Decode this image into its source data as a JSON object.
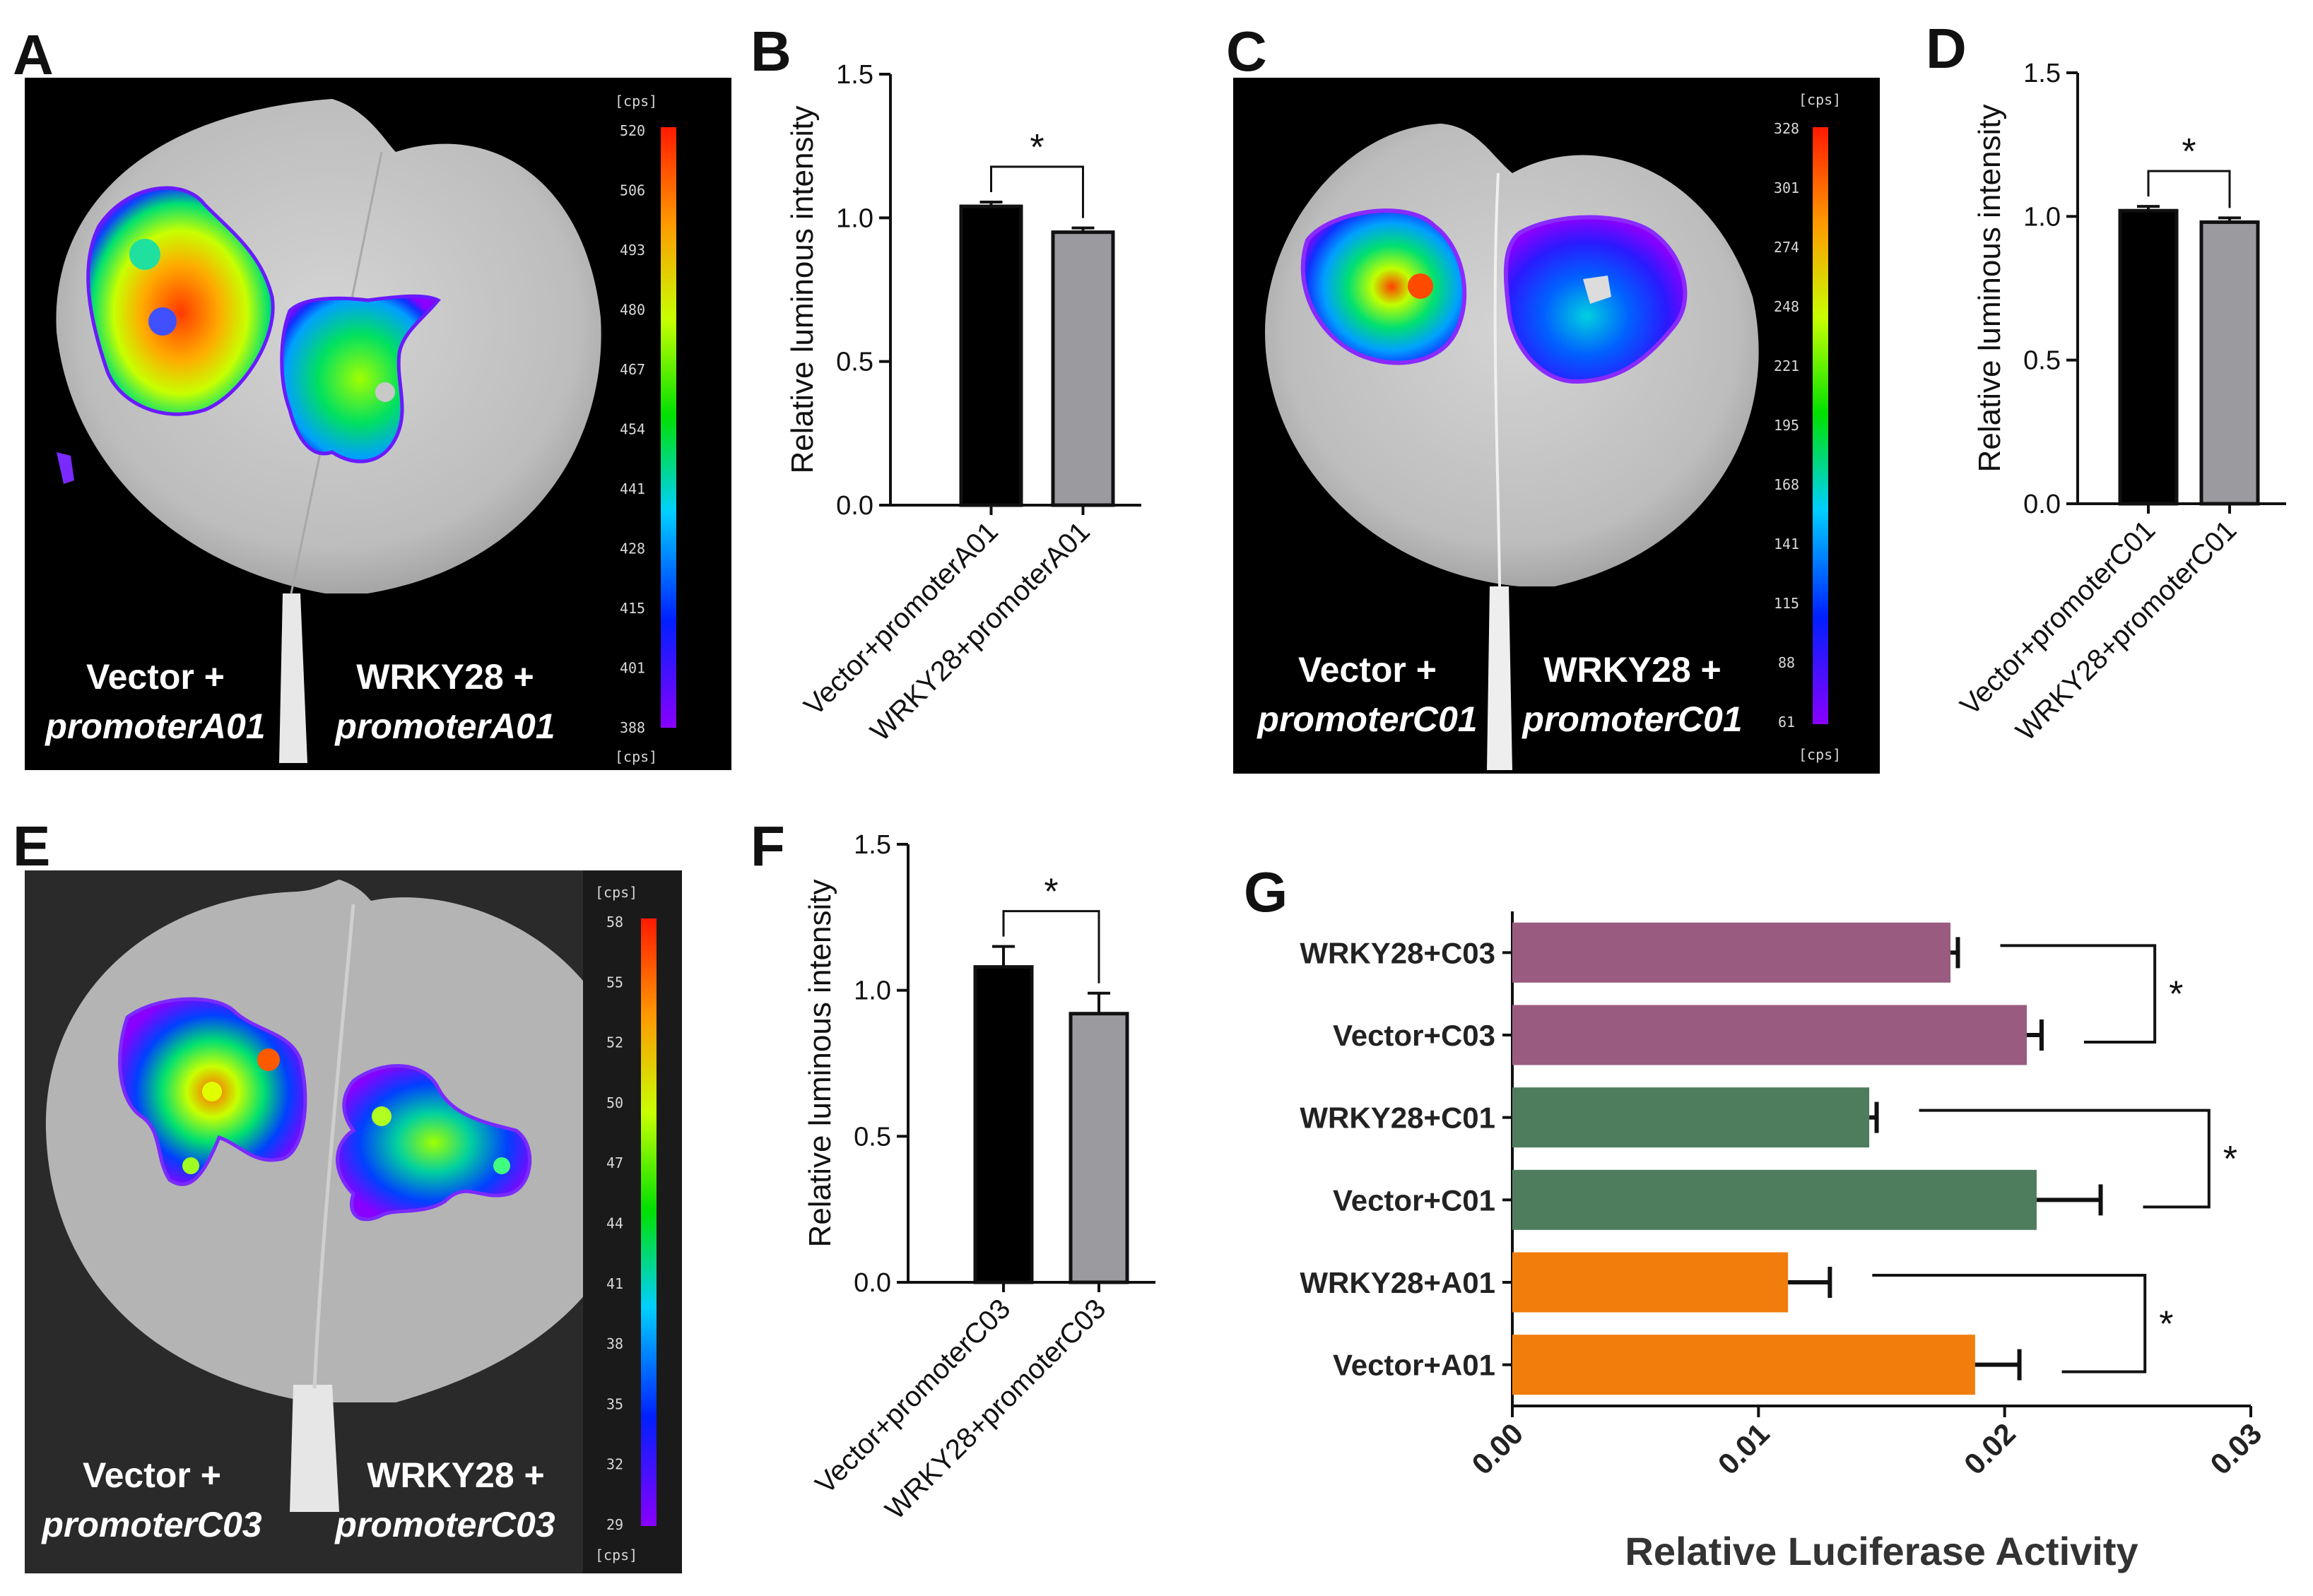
{
  "chart_data": [
    {
      "panel": "A",
      "type": "image",
      "labels": [
        {
          "line1": "Vector +",
          "line2": "promoterA01"
        },
        {
          "line1": "WRKY28 +",
          "line2": "promoterA01"
        }
      ],
      "colorbar": {
        "unit": "[cps]",
        "ticks": [
          "520",
          "506",
          "493",
          "480",
          "467",
          "454",
          "441",
          "428",
          "415",
          "401",
          "388"
        ]
      }
    },
    {
      "panel": "B",
      "type": "bar",
      "ylabel": "Relative luminous intensity",
      "ylim": [
        0,
        1.5
      ],
      "yticks": [
        "0.0",
        "0.5",
        "1.0",
        "1.5"
      ],
      "categories": [
        "Vector+promoterA01",
        "WRKY28+promoterA01"
      ],
      "values": [
        1.04,
        0.95
      ],
      "errors": [
        0.015,
        0.015
      ],
      "colors": [
        "#000000",
        "#9b9b9f"
      ],
      "significance": "*"
    },
    {
      "panel": "C",
      "type": "image",
      "labels": [
        {
          "line1": "Vector +",
          "line2": "promoterC01"
        },
        {
          "line1": "WRKY28 +",
          "line2": "promoterC01"
        }
      ],
      "colorbar": {
        "unit": "[cps]",
        "ticks": [
          "328",
          "301",
          "274",
          "248",
          "221",
          "195",
          "168",
          "141",
          "115",
          "88",
          "61"
        ]
      }
    },
    {
      "panel": "D",
      "type": "bar",
      "ylabel": "Relative luminous intensity",
      "ylim": [
        0,
        1.5
      ],
      "yticks": [
        "0.0",
        "0.5",
        "1.0",
        "1.5"
      ],
      "categories": [
        "Vector+promoterC01",
        "WRKY28+promoterC01"
      ],
      "values": [
        1.02,
        0.98
      ],
      "errors": [
        0.015,
        0.015
      ],
      "colors": [
        "#000000",
        "#9b9b9f"
      ],
      "significance": "*"
    },
    {
      "panel": "E",
      "type": "image",
      "labels": [
        {
          "line1": "Vector +",
          "line2": "promoterC03"
        },
        {
          "line1": "WRKY28 +",
          "line2": "promoterC03"
        }
      ],
      "colorbar": {
        "unit": "[cps]",
        "ticks": [
          "58",
          "55",
          "52",
          "50",
          "47",
          "44",
          "41",
          "38",
          "35",
          "32",
          "29"
        ]
      }
    },
    {
      "panel": "F",
      "type": "bar",
      "ylabel": "Relative luminous intensity",
      "ylim": [
        0,
        1.5
      ],
      "yticks": [
        "0.0",
        "0.5",
        "1.0",
        "1.5"
      ],
      "categories": [
        "Vector+promoterC03",
        "WRKY28+promoterC03"
      ],
      "values": [
        1.08,
        0.92
      ],
      "errors": [
        0.07,
        0.07
      ],
      "colors": [
        "#000000",
        "#9b9b9f"
      ],
      "significance": "*"
    },
    {
      "panel": "G",
      "type": "bar",
      "orientation": "horizontal",
      "xlabel": "Relative Luciferase Activity",
      "xlim": [
        0,
        0.03
      ],
      "xticks": [
        "0.00",
        "0.01",
        "0.02",
        "0.03"
      ],
      "categories": [
        "WRKY28+C03",
        "Vector+C03",
        "WRKY28+C01",
        "Vector+C01",
        "WRKY28+A01",
        "Vector+A01"
      ],
      "values": [
        0.0178,
        0.0209,
        0.0145,
        0.0213,
        0.0112,
        0.0188
      ],
      "errors": [
        0.0003,
        0.0006,
        0.0003,
        0.0026,
        0.0017,
        0.0018
      ],
      "colors": [
        "#9a5b80",
        "#9a5b80",
        "#4e7d5d",
        "#4e7d5d",
        "#f07d0c",
        "#f07d0c"
      ],
      "significance": [
        "*",
        "*",
        "*"
      ]
    }
  ]
}
